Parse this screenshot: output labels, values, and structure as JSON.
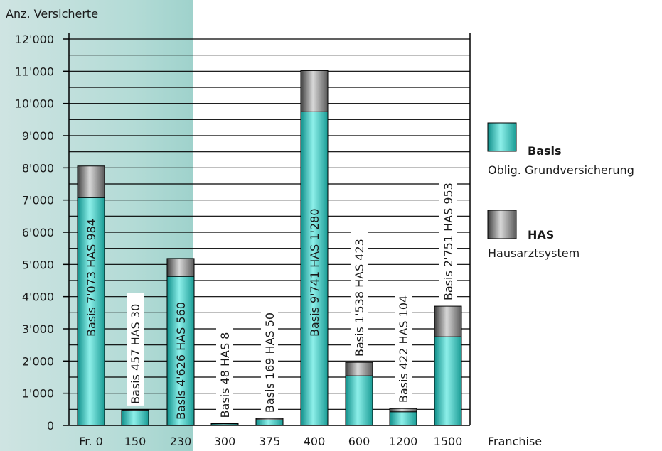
{
  "chart_data": {
    "type": "bar",
    "stacked": true,
    "ylabel": "Anz. Versicherte",
    "xlabel": "Franchise",
    "ylim": [
      0,
      12000
    ],
    "ytick_step": 1000,
    "yticks": [
      "0",
      "1'000",
      "2'000",
      "3'000",
      "4'000",
      "5'000",
      "6'000",
      "7'000",
      "8'000",
      "9'000",
      "10'000",
      "11'000",
      "12'000"
    ],
    "categories": [
      "Fr.  0",
      "150",
      "230",
      "300",
      "375",
      "400",
      "600",
      "1200",
      "1500"
    ],
    "series": [
      {
        "name": "Basis",
        "values": [
          7073,
          457,
          4626,
          48,
          169,
          9741,
          1538,
          422,
          2751
        ]
      },
      {
        "name": "HAS",
        "values": [
          984,
          30,
          560,
          8,
          50,
          1280,
          423,
          104,
          953
        ]
      }
    ],
    "bar_labels": [
      "Basis 7'073  HAS 984",
      "Basis 457  HAS 30",
      "Basis 4'626  HAS 560",
      "Basis 48  HAS 8",
      "Basis 169  HAS 50",
      "Basis 9'741  HAS 1'280",
      "Basis 1'538  HAS 423",
      "Basis 422  HAS 104",
      "Basis 2'751  HAS 953"
    ],
    "legend": [
      {
        "title": "Basis",
        "subtitle": "Oblig. Grundversicherung",
        "color": "#35c2bb"
      },
      {
        "title": "HAS",
        "subtitle": "Hausarztsystem",
        "color": "#8a8a8a"
      }
    ],
    "legend_position": "right",
    "grid": true,
    "colors": {
      "basis": "#35c2bb",
      "has": "#8a8a8a",
      "panel": "#bfe0dc"
    }
  }
}
